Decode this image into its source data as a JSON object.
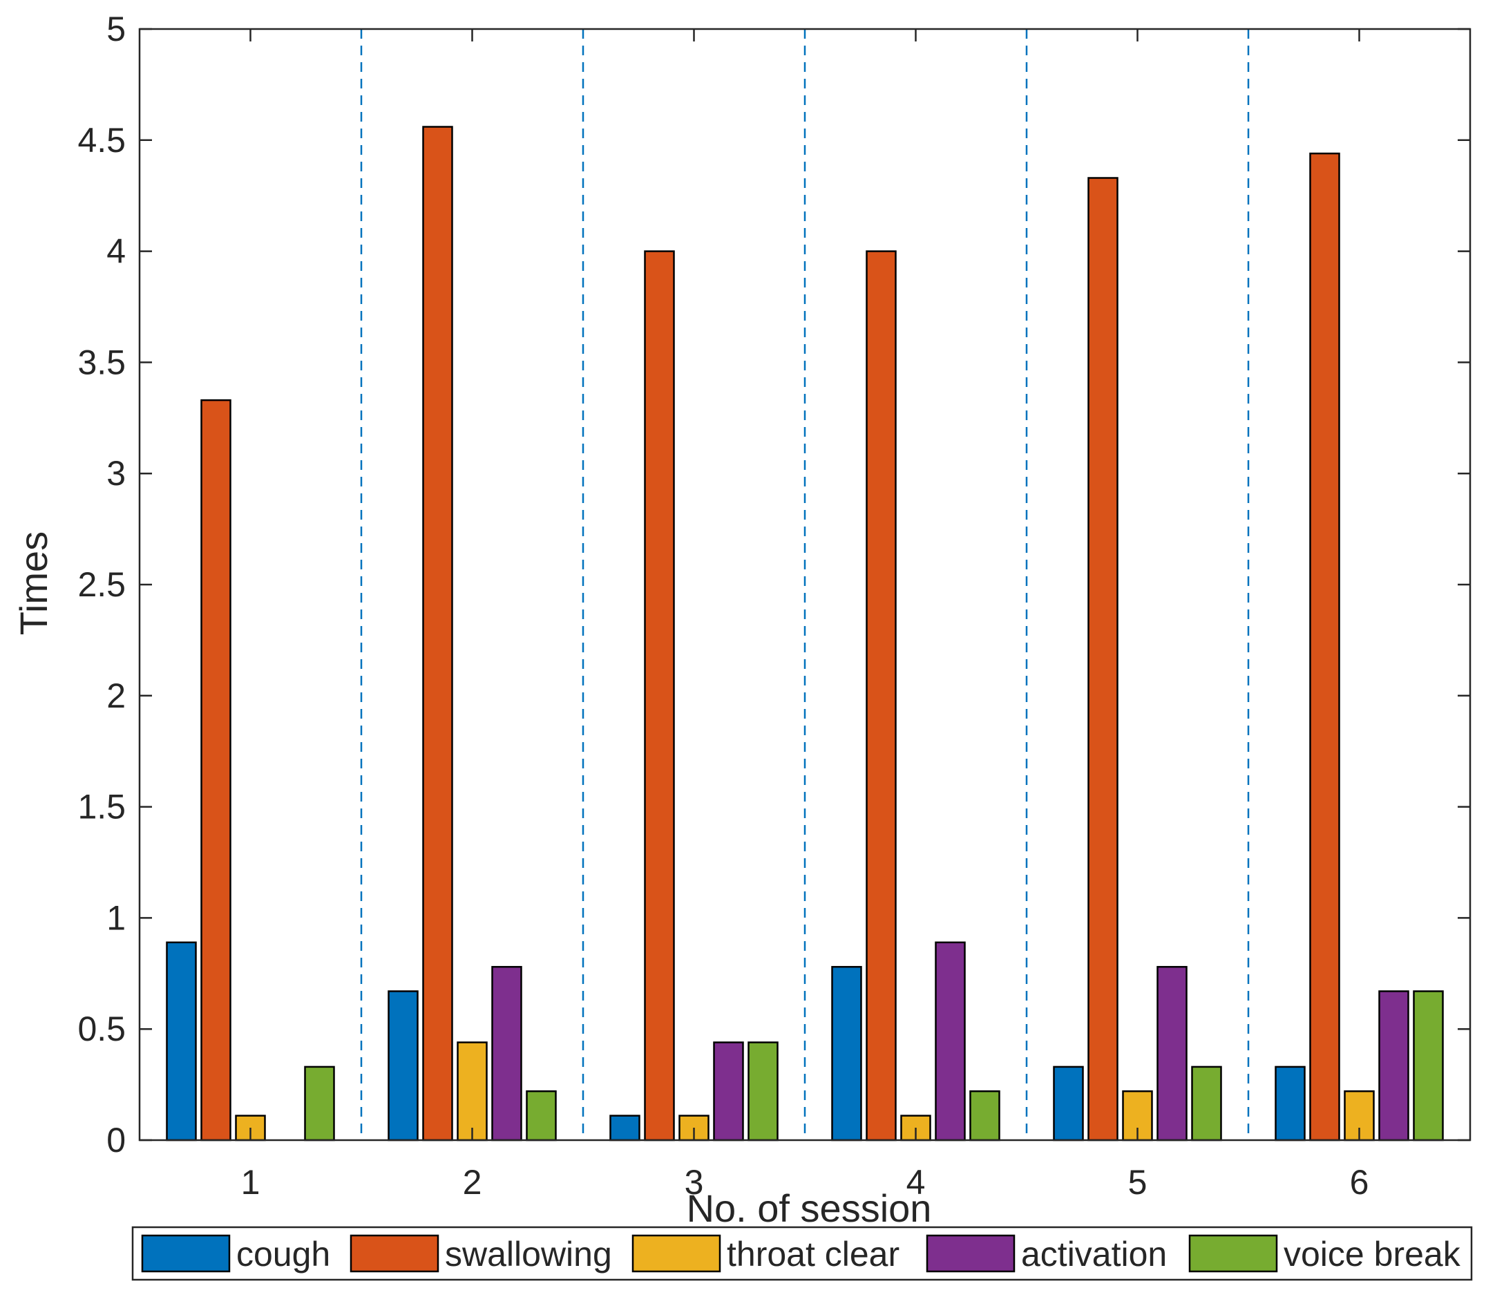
{
  "chart_data": {
    "type": "bar",
    "title": "",
    "xlabel": "No. of session",
    "ylabel": "Times",
    "categories": [
      "1",
      "2",
      "3",
      "4",
      "5",
      "6"
    ],
    "ylim": [
      0,
      5
    ],
    "yticks": [
      "0",
      "0.5",
      "1",
      "1.5",
      "2",
      "2.5",
      "3",
      "3.5",
      "4",
      "4.5",
      "5"
    ],
    "grid": false,
    "session_separators": "dashed vertical lines between sessions",
    "legend_position": "bottom",
    "series": [
      {
        "name": "cough",
        "color": "#0072BD",
        "values": [
          0.89,
          0.67,
          0.11,
          0.78,
          0.33,
          0.33
        ]
      },
      {
        "name": "swallowing",
        "color": "#D95319",
        "values": [
          3.33,
          4.56,
          4.0,
          4.0,
          4.33,
          4.44
        ]
      },
      {
        "name": "throat clear",
        "color": "#EDB120",
        "values": [
          0.11,
          0.44,
          0.11,
          0.11,
          0.22,
          0.22
        ]
      },
      {
        "name": "activation",
        "color": "#7E2F8E",
        "values": [
          0,
          0.78,
          0.44,
          0.89,
          0.78,
          0.67
        ]
      },
      {
        "name": "voice break",
        "color": "#77AC30",
        "values": [
          0.33,
          0.22,
          0.44,
          0.22,
          0.33,
          0.67
        ]
      }
    ],
    "separator_color": "#0072BD",
    "axis_color": "#262626"
  }
}
